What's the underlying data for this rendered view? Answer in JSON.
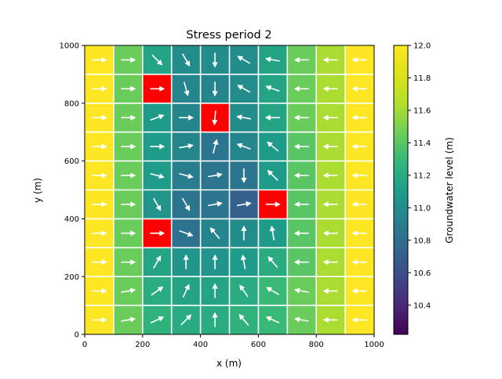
{
  "chart_data": {
    "type": "heatmap",
    "title": "Stress period 2",
    "xlabel": "x (m)",
    "ylabel": "y (m)",
    "xlim": [
      0,
      1000
    ],
    "ylim": [
      0,
      1000
    ],
    "x_ticks": [
      "0",
      "200",
      "400",
      "600",
      "800",
      "1000"
    ],
    "y_ticks": [
      "0",
      "200",
      "400",
      "600",
      "800",
      "1000"
    ],
    "cell_size": 100,
    "colorbar": {
      "label": "Groundwater level (m)",
      "range": [
        10.22,
        12.0
      ],
      "ticks": [
        "10.4",
        "10.6",
        "10.8",
        "11.0",
        "11.2",
        "11.4",
        "11.6",
        "11.8",
        "12.0"
      ],
      "colormap": "viridis"
    },
    "masked_color": "#ff0000",
    "grid_line_color": "#ffffff",
    "arrow_color": "#ffffff",
    "rows_top_to_bottom": [
      [
        12.0,
        11.45,
        11.15,
        11.0,
        11.0,
        11.0,
        11.15,
        11.45,
        11.62,
        12.0
      ],
      [
        12.0,
        11.45,
        null,
        10.95,
        10.95,
        11.0,
        11.15,
        11.45,
        11.62,
        12.0
      ],
      [
        12.0,
        11.45,
        11.1,
        10.95,
        null,
        11.0,
        11.15,
        11.45,
        11.62,
        12.0
      ],
      [
        12.0,
        11.45,
        11.1,
        10.95,
        10.85,
        10.95,
        11.1,
        11.4,
        11.62,
        12.0
      ],
      [
        12.0,
        11.45,
        11.1,
        10.9,
        10.85,
        10.85,
        11.1,
        11.4,
        11.62,
        12.0
      ],
      [
        12.0,
        11.45,
        11.05,
        10.85,
        10.85,
        10.7,
        null,
        11.4,
        11.62,
        12.0
      ],
      [
        12.0,
        11.45,
        null,
        10.82,
        10.95,
        11.0,
        11.1,
        11.4,
        11.62,
        12.0
      ],
      [
        12.0,
        11.45,
        11.15,
        11.05,
        11.05,
        11.1,
        11.2,
        11.4,
        11.62,
        12.0
      ],
      [
        12.0,
        11.45,
        11.2,
        11.15,
        11.15,
        11.2,
        11.3,
        11.45,
        11.62,
        12.0
      ],
      [
        12.0,
        11.45,
        11.25,
        11.2,
        11.2,
        11.25,
        11.3,
        11.45,
        11.62,
        12.0
      ]
    ],
    "arrow_angles_deg_rows_top_to_bottom": [
      [
        0,
        0,
        -45,
        -60,
        -90,
        150,
        170,
        180,
        180,
        180
      ],
      [
        0,
        0,
        null,
        -75,
        -90,
        150,
        160,
        180,
        180,
        180
      ],
      [
        0,
        0,
        20,
        0,
        -95,
        170,
        180,
        180,
        180,
        180
      ],
      [
        0,
        0,
        0,
        10,
        75,
        160,
        140,
        180,
        180,
        180
      ],
      [
        0,
        0,
        -15,
        -15,
        10,
        -90,
        135,
        180,
        180,
        180
      ],
      [
        0,
        0,
        -60,
        -60,
        10,
        10,
        null,
        180,
        180,
        180
      ],
      [
        0,
        0,
        null,
        -20,
        130,
        90,
        100,
        180,
        180,
        180
      ],
      [
        0,
        0,
        60,
        90,
        90,
        100,
        130,
        180,
        180,
        180
      ],
      [
        0,
        10,
        35,
        65,
        90,
        125,
        150,
        170,
        180,
        180
      ],
      [
        0,
        10,
        25,
        45,
        90,
        130,
        155,
        170,
        180,
        180
      ]
    ]
  }
}
